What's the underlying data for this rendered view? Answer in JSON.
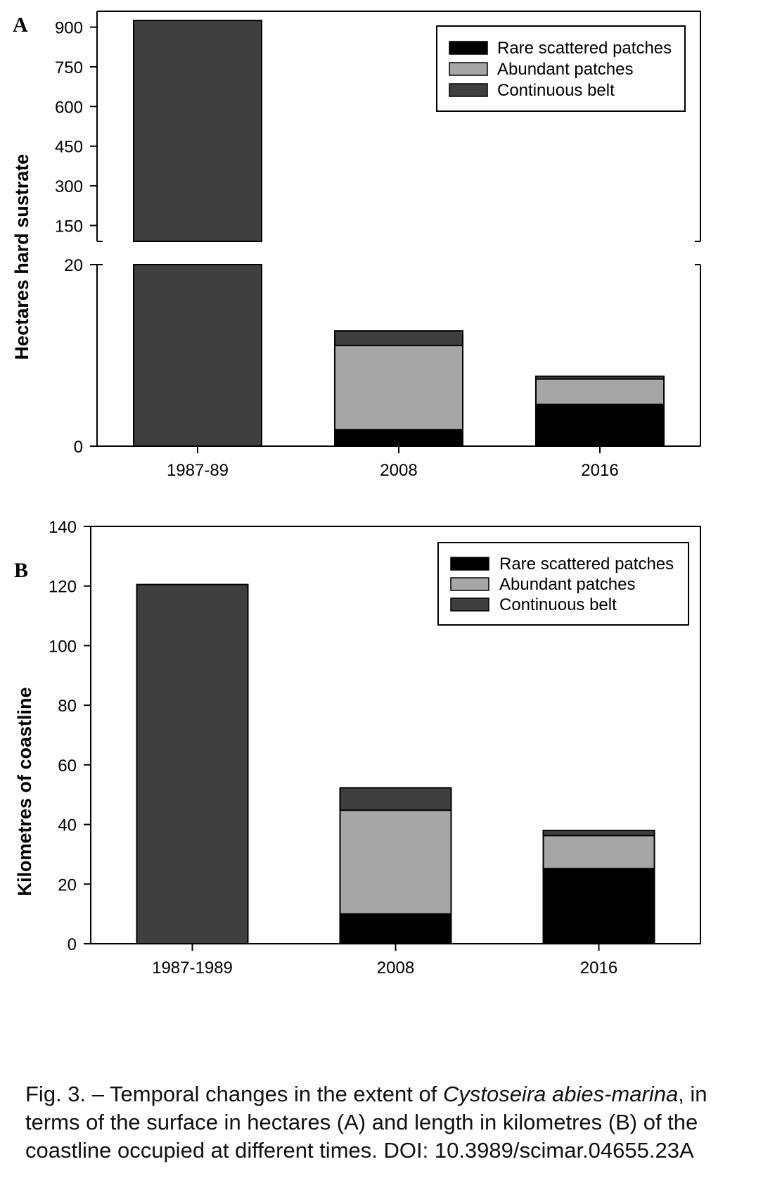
{
  "colors": {
    "rare_scattered_patches": "#000000",
    "abundant_patches": "#a6a6a6",
    "continuous_belt": "#3f3f3f"
  },
  "chart_data": [
    {
      "panel": "A",
      "type": "bar",
      "stacked": true,
      "ylabel": "Hectares hard sustrate",
      "axis_break": true,
      "lower_segment_ylim": [
        0,
        20
      ],
      "lower_segment_yticks": [
        0,
        20
      ],
      "upper_segment_ylim": [
        90,
        960
      ],
      "upper_segment_yticks": [
        150,
        300,
        450,
        600,
        750,
        900
      ],
      "categories": [
        "1987-89",
        "2008",
        "2016"
      ],
      "series": [
        {
          "name": "Rare scattered patches",
          "values": [
            0,
            1.8,
            4.6
          ]
        },
        {
          "name": "Abundant patches",
          "values": [
            0,
            9.3,
            2.8
          ]
        },
        {
          "name": "Continuous belt",
          "values": [
            925,
            1.6,
            0.3
          ]
        }
      ],
      "legend": "top-right",
      "grid": false
    },
    {
      "panel": "B",
      "type": "bar",
      "stacked": true,
      "ylabel": "Kilometres of coastline",
      "ylim": [
        0,
        140
      ],
      "yticks": [
        0,
        20,
        40,
        60,
        80,
        100,
        120,
        140
      ],
      "categories": [
        "1987-1989",
        "2008",
        "2016"
      ],
      "series": [
        {
          "name": "Rare scattered patches",
          "values": [
            0,
            10,
            25.2
          ]
        },
        {
          "name": "Abundant patches",
          "values": [
            0,
            34.8,
            11.1
          ]
        },
        {
          "name": "Continuous belt",
          "values": [
            120.5,
            7.5,
            1.7
          ]
        }
      ],
      "legend": "top-right",
      "grid": false
    }
  ],
  "caption": {
    "part1": "Fig. 3. – Temporal changes in the extent of ",
    "species": "Cystoseira abies-marina",
    "part2": ", in terms of the surface in hectares (A) and length in kilometres (B) of the coastline occupied at different times. DOI: 10.3989/scimar.04655.23A"
  }
}
